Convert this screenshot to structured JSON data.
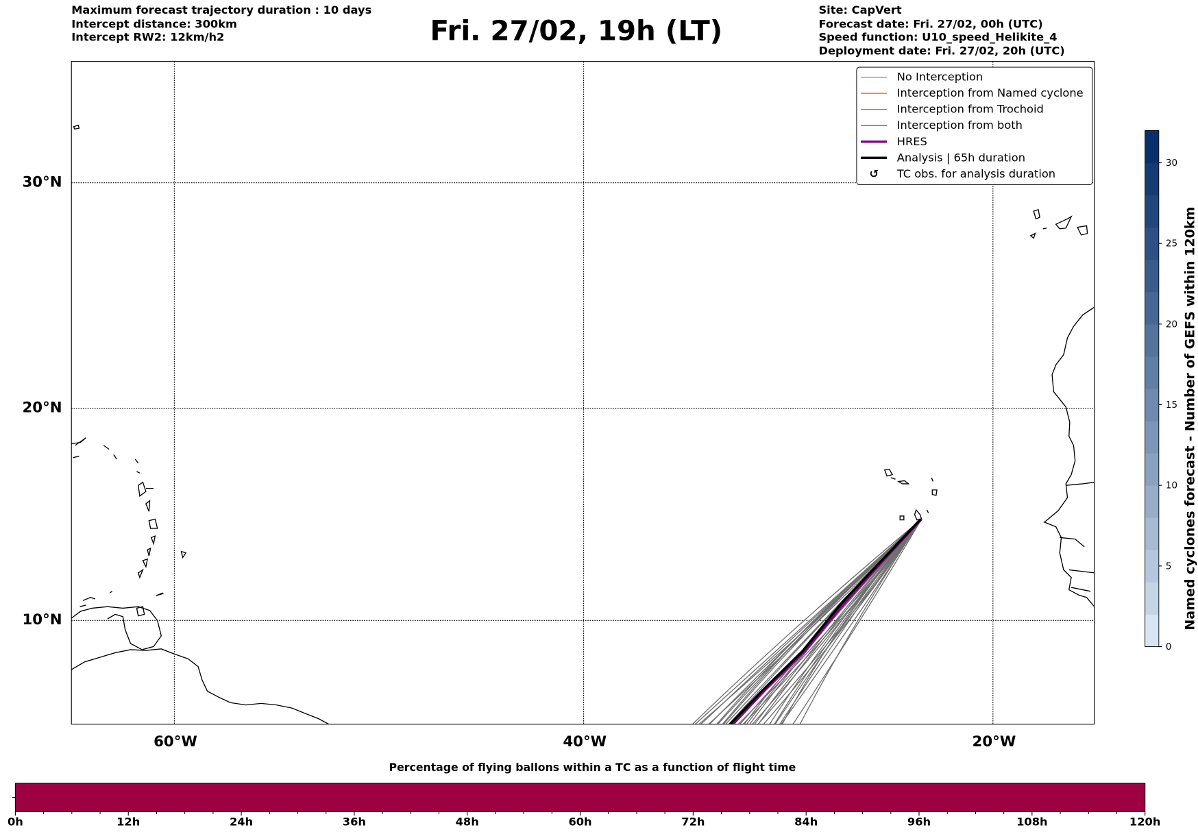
{
  "header": {
    "left": [
      "Maximum forecast trajectory duration : 10 days",
      "Intercept distance: 300km",
      "Intercept RW2: 12km/h2"
    ],
    "title": "Fri. 27/02, 19h (LT)",
    "right": [
      "Site: CapVert",
      "Forecast date: Fri. 27/02, 00h (UTC)",
      "Speed function: U10_speed_Helikite_4",
      "Deployment date: Fri. 27/02, 20h (UTC)"
    ]
  },
  "map": {
    "lon_labels": [
      "60°W",
      "40°W",
      "20°W"
    ],
    "lat_labels": [
      "30°N",
      "20°N",
      "10°N"
    ],
    "extent": {
      "lon": [
        -65,
        -15
      ],
      "lat": [
        5.5,
        35
      ]
    },
    "trajectory_count": 31
  },
  "legend": {
    "items": [
      {
        "label": "No Interception",
        "color": "#707070",
        "width": 1
      },
      {
        "label": "Interception from Named cyclone",
        "color": "#ff4500",
        "width": 1
      },
      {
        "label": "Interception from Trochoid",
        "color": "#808000",
        "width": 1
      },
      {
        "label": "Interception from both",
        "color": "#008000",
        "width": 1
      },
      {
        "label": "HRES",
        "color": "#800080",
        "width": 3
      },
      {
        "label": "Analysis | 65h duration",
        "color": "#000000",
        "width": 3
      },
      {
        "label": "TC obs. for analysis duration",
        "color": "#000000",
        "symbol": "↺"
      }
    ]
  },
  "colorbar": {
    "label": "Named cyclones forecast - Number of GEFS within 120km",
    "min": 0,
    "max": 32,
    "step": 2,
    "ticks": [
      "0",
      "5",
      "10",
      "15",
      "20",
      "25",
      "30"
    ],
    "colormap": "Blues"
  },
  "timebar": {
    "title": "Percentage of flying ballons within a TC as a function of flight time",
    "ticks": [
      "0h",
      "12h",
      "24h",
      "36h",
      "48h",
      "60h",
      "72h",
      "84h",
      "96h",
      "108h",
      "120h"
    ],
    "color": "#9e0142",
    "percent": 0
  }
}
